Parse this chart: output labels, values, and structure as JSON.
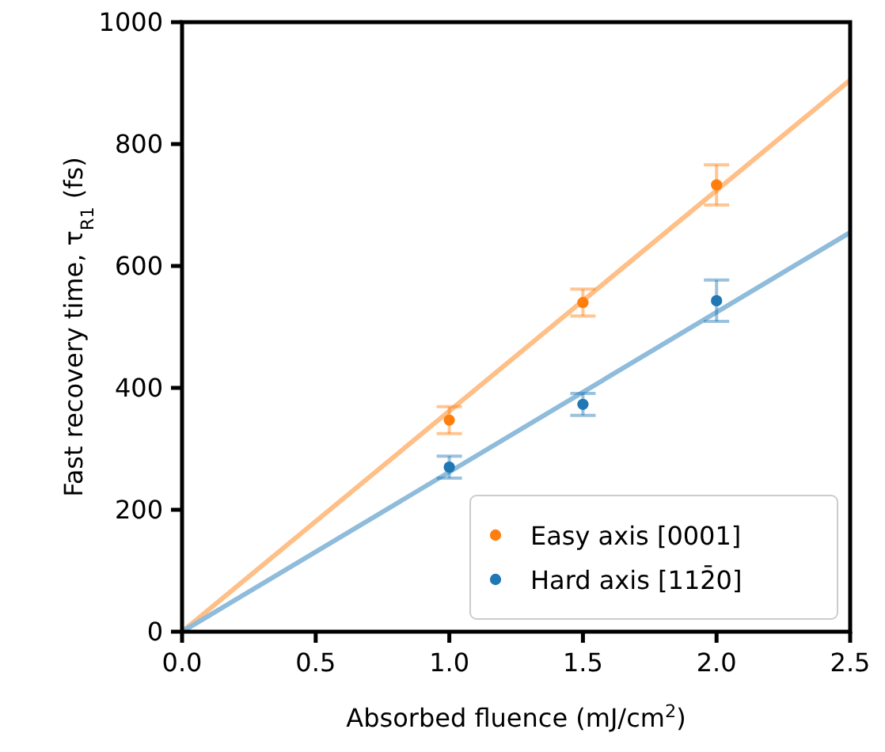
{
  "chart_data": {
    "type": "scatter",
    "xlabel": "Absorbed fluence (mJ/cm$^{2}$)",
    "ylabel": "Fast recovery time, τ$_{R1}$ (fs)",
    "xlim": [
      0,
      2.5
    ],
    "ylim": [
      0,
      1000
    ],
    "xticks": [
      {
        "value": 0,
        "label": "0.0"
      },
      {
        "value": 0.5,
        "label": "0.5"
      },
      {
        "value": 1,
        "label": "1.0"
      },
      {
        "value": 1.5,
        "label": "1.5"
      },
      {
        "value": 2,
        "label": "2.0"
      },
      {
        "value": 2.5,
        "label": "2.5"
      }
    ],
    "yticks": [
      0,
      200,
      400,
      600,
      800,
      1000
    ],
    "legend": "bottom right",
    "marker": "circle",
    "grid": false,
    "series": [
      {
        "type": "line",
        "color": "#ffbf86",
        "marker": "none",
        "x": [
          0,
          2.5
        ],
        "values": [
          0,
          905
        ]
      },
      {
        "type": "line",
        "color": "#8fbcdb",
        "marker": "none",
        "x": [
          0,
          2.5
        ],
        "values": [
          0,
          655
        ]
      },
      {
        "name": "Easy axis [0001]",
        "color": "#ff7f0e",
        "x": [
          1,
          1.5,
          2
        ],
        "values": [
          347,
          540,
          733
        ],
        "errors": [
          22,
          22,
          33
        ]
      },
      {
        "name": "Hard axis [112̄0]",
        "color": "#1f77b4",
        "x": [
          1,
          1.5,
          2
        ],
        "values": [
          270,
          373,
          543
        ],
        "errors": [
          18,
          18,
          34
        ]
      }
    ]
  }
}
